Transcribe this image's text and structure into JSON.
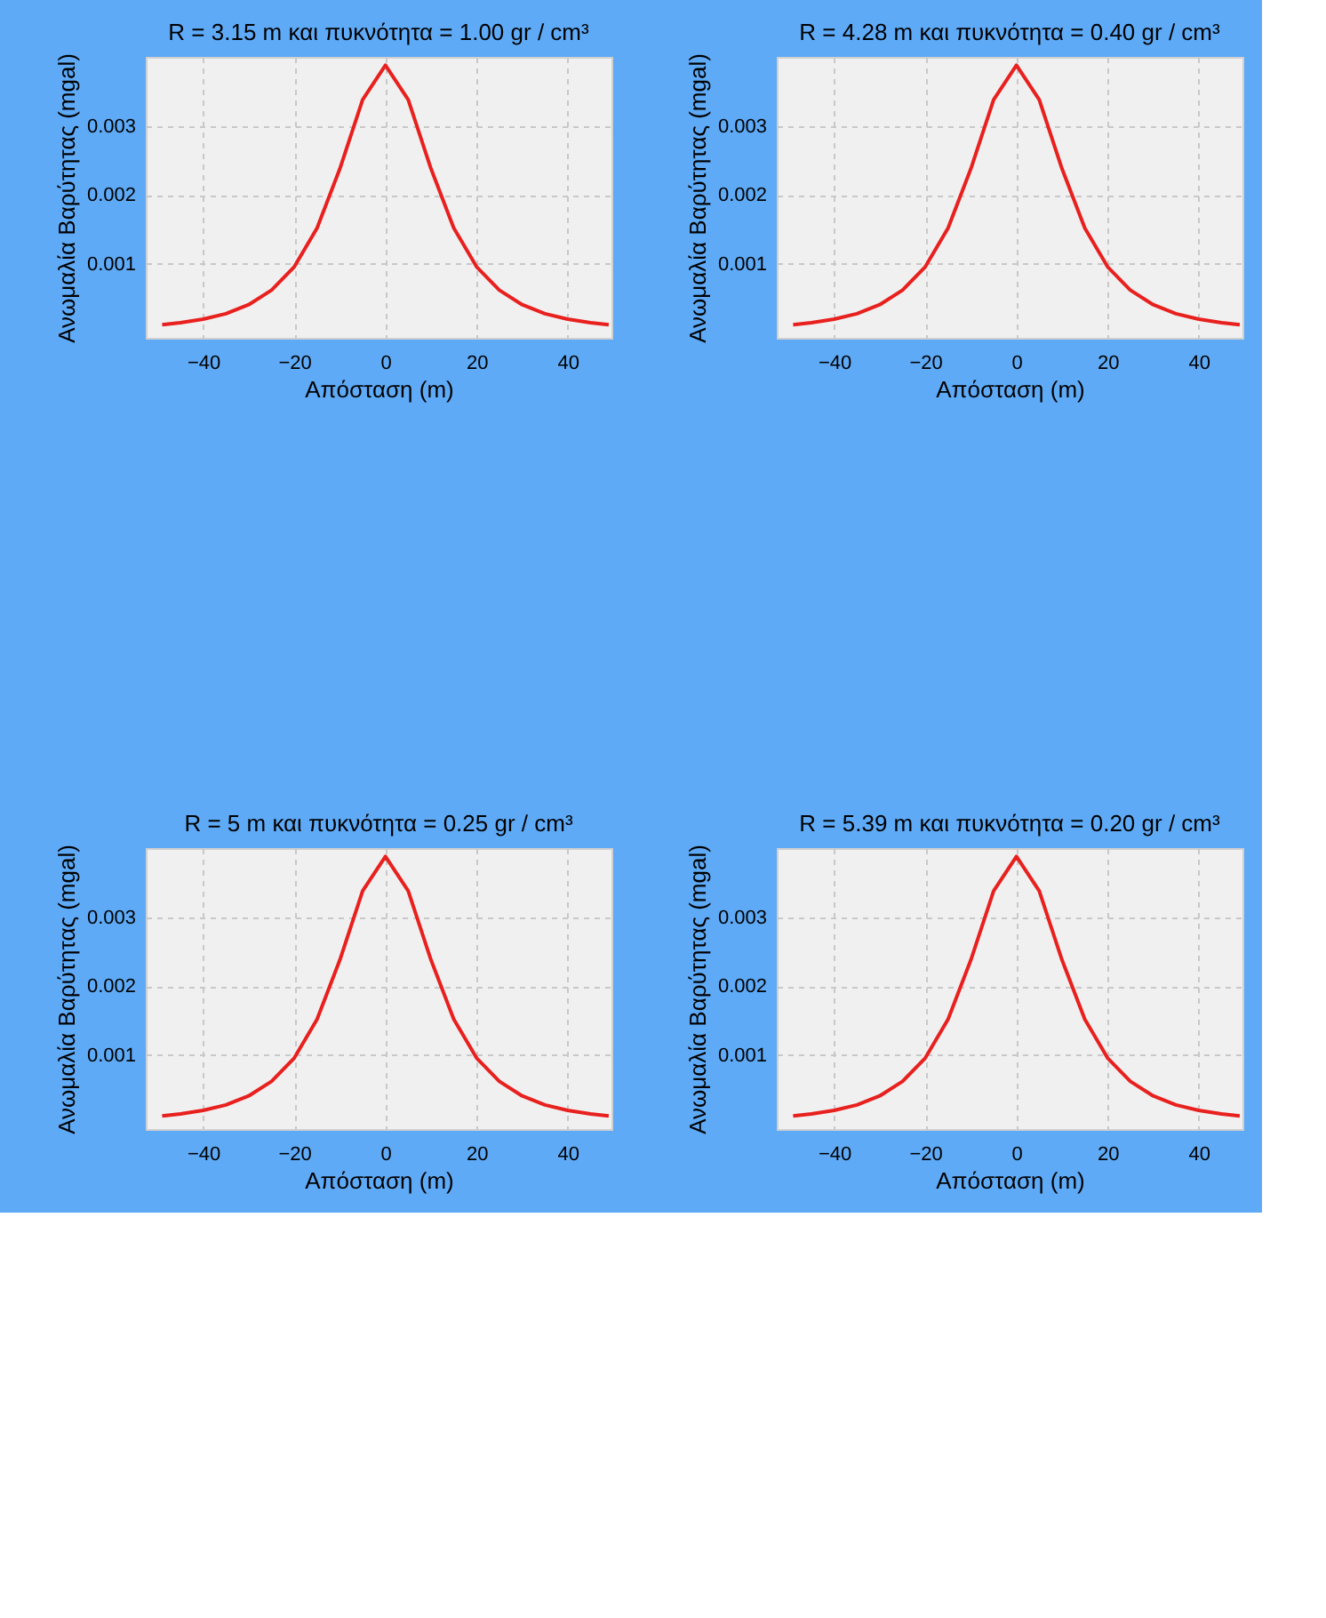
{
  "chart_data": [
    {
      "type": "line",
      "title": "R = 3.15 m  και πυκνότητα = 1.00 gr / cm³",
      "xlabel": "Απόσταση (m)",
      "ylabel": "Ανωμαλία Βαρύτητας (mgal)",
      "x": [
        -49,
        -45,
        -40,
        -35,
        -30,
        -25,
        -20,
        -15,
        -10,
        -5,
        0,
        5,
        10,
        15,
        20,
        25,
        30,
        35,
        40,
        45,
        49
      ],
      "series": [
        {
          "color": "#e8201e",
          "values": [
            0.00012,
            0.00015,
            0.0002,
            0.00028,
            0.00041,
            0.00062,
            0.00096,
            0.00152,
            0.00238,
            0.00338,
            0.00388,
            0.00338,
            0.00238,
            0.00152,
            0.00096,
            0.00062,
            0.00041,
            0.00028,
            0.0002,
            0.00015,
            0.00012
          ]
        }
      ],
      "xlim": [
        -52.6,
        49.6
      ],
      "xticks": [
        -40,
        -20,
        0,
        20,
        40
      ],
      "ylim": [
        -7e-05,
        0.004
      ],
      "yticks": [
        0.001,
        0.002,
        0.003
      ],
      "grid": true,
      "line_style": "solid"
    },
    {
      "type": "line",
      "title": "R = 4.28 m  και πυκνότητα = 0.40 gr / cm³",
      "xlabel": "Απόσταση (m)",
      "ylabel": "Ανωμαλία Βαρύτητας (mgal)",
      "x": [
        -49,
        -45,
        -40,
        -35,
        -30,
        -25,
        -20,
        -15,
        -10,
        -5,
        0,
        5,
        10,
        15,
        20,
        25,
        30,
        35,
        40,
        45,
        49
      ],
      "series": [
        {
          "color": "#e8201e",
          "values": [
            0.00012,
            0.00015,
            0.0002,
            0.00028,
            0.00041,
            0.00062,
            0.00096,
            0.00152,
            0.00238,
            0.00338,
            0.00388,
            0.00338,
            0.00238,
            0.00152,
            0.00096,
            0.00062,
            0.00041,
            0.00028,
            0.0002,
            0.00015,
            0.00012
          ]
        }
      ],
      "xlim": [
        -52.6,
        49.6
      ],
      "xticks": [
        -40,
        -20,
        0,
        20,
        40
      ],
      "ylim": [
        -7e-05,
        0.004
      ],
      "yticks": [
        0.001,
        0.002,
        0.003
      ],
      "grid": true,
      "line_style": "solid"
    },
    {
      "type": "line",
      "title": "R = 5 m  και πυκνότητα = 0.25 gr / cm³",
      "xlabel": "Απόσταση (m)",
      "ylabel": "Ανωμαλία Βαρύτητας (mgal)",
      "x": [
        -49,
        -45,
        -40,
        -35,
        -30,
        -25,
        -20,
        -15,
        -10,
        -5,
        0,
        5,
        10,
        15,
        20,
        25,
        30,
        35,
        40,
        45,
        49
      ],
      "series": [
        {
          "color": "#e8201e",
          "values": [
            0.00012,
            0.00015,
            0.0002,
            0.00028,
            0.00041,
            0.00062,
            0.00096,
            0.00152,
            0.00238,
            0.00338,
            0.00388,
            0.00338,
            0.00238,
            0.00152,
            0.00096,
            0.00062,
            0.00041,
            0.00028,
            0.0002,
            0.00015,
            0.00012
          ]
        }
      ],
      "xlim": [
        -52.6,
        49.6
      ],
      "xticks": [
        -40,
        -20,
        0,
        20,
        40
      ],
      "ylim": [
        -7e-05,
        0.004
      ],
      "yticks": [
        0.001,
        0.002,
        0.003
      ],
      "grid": true,
      "line_style": "solid"
    },
    {
      "type": "line",
      "title": "R = 5.39 m  και πυκνότητα = 0.20 gr / cm³",
      "xlabel": "Απόσταση (m)",
      "ylabel": "Ανωμαλία Βαρύτητας (mgal)",
      "x": [
        -49,
        -45,
        -40,
        -35,
        -30,
        -25,
        -20,
        -15,
        -10,
        -5,
        0,
        5,
        10,
        15,
        20,
        25,
        30,
        35,
        40,
        45,
        49
      ],
      "series": [
        {
          "color": "#e8201e",
          "values": [
            0.00012,
            0.00015,
            0.0002,
            0.00028,
            0.00041,
            0.00062,
            0.00096,
            0.00152,
            0.00238,
            0.00338,
            0.00388,
            0.00338,
            0.00238,
            0.00152,
            0.00096,
            0.00062,
            0.00041,
            0.00028,
            0.0002,
            0.00015,
            0.00012
          ]
        }
      ],
      "xlim": [
        -52.6,
        49.6
      ],
      "xticks": [
        -40,
        -20,
        0,
        20,
        40
      ],
      "ylim": [
        -7e-05,
        0.004
      ],
      "yticks": [
        0.001,
        0.002,
        0.003
      ],
      "grid": true,
      "line_style": "solid"
    }
  ]
}
